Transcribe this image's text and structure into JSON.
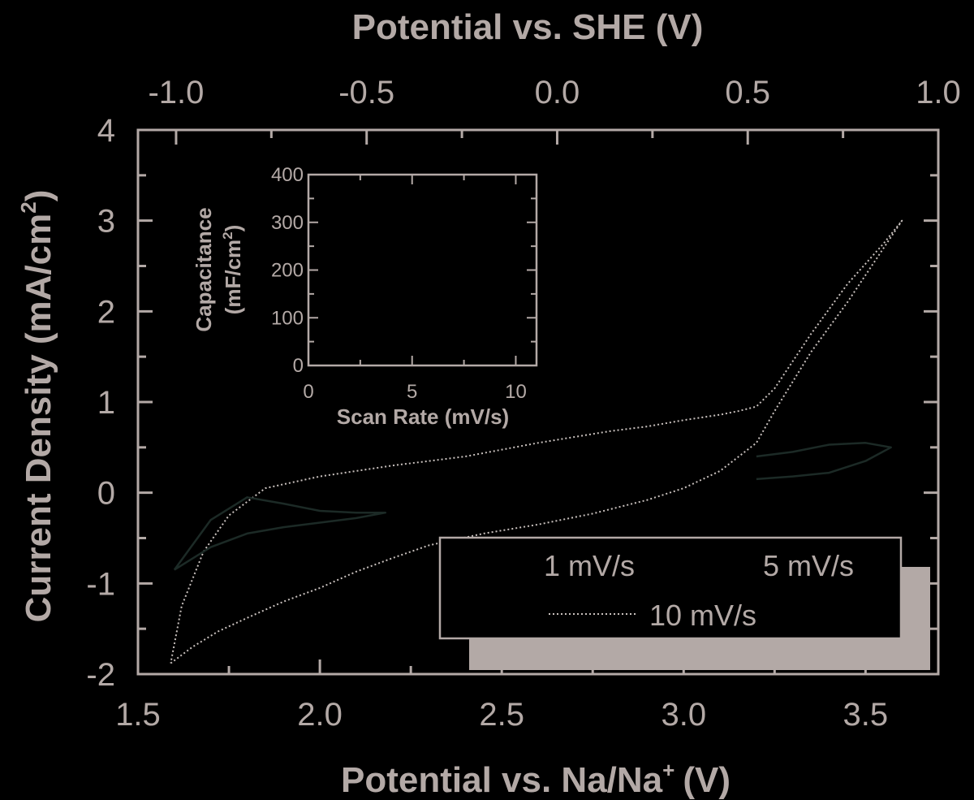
{
  "colors": {
    "background": "#000000",
    "foreground": "#b3a9a6",
    "curve_10mV": "#c8c0bd",
    "curve_dark": "#1c2a26",
    "legend_shadow": "#b3a9a6"
  },
  "chart_data": [
    {
      "type": "line",
      "title": "",
      "xlabel": "Potential vs. Na/Na",
      "xlabel_sup": "+",
      "xlabel_unit": "(V)",
      "x2label": "Potential vs. SHE (V)",
      "ylabel": "Current Density (mA/cm",
      "ylabel_sup": "2",
      "ylabel_end": ")",
      "xlim": [
        1.5,
        3.7
      ],
      "ylim": [
        -2,
        4
      ],
      "x2lim": [
        -1.1,
        1.0
      ],
      "x_ticks": [
        "1.5",
        "2.0",
        "2.5",
        "3.0",
        "3.5"
      ],
      "x2_ticks": [
        "-1.0",
        "-0.5",
        "0.0",
        "0.5",
        "1.0"
      ],
      "y_ticks": [
        "-2",
        "-1",
        "0",
        "1",
        "2",
        "3",
        "4"
      ],
      "legend": {
        "position": "bottom-right",
        "entries": [
          "1 mV/s",
          "5 mV/s",
          "10 mV/s"
        ]
      },
      "series": [
        {
          "name": "10 mV/s",
          "style": "dotted",
          "x": [
            1.59,
            1.65,
            1.72,
            1.8,
            1.9,
            2.0,
            2.1,
            2.2,
            2.3,
            2.45,
            2.6,
            2.75,
            2.9,
            3.0,
            3.1,
            3.2,
            3.25,
            3.35,
            3.45,
            3.55,
            3.6,
            3.55,
            3.45,
            3.35,
            3.25,
            3.2,
            3.15,
            3.1,
            3.0,
            2.9,
            2.8,
            2.6,
            2.4,
            2.2,
            2.0,
            1.85,
            1.75,
            1.68,
            1.62,
            1.59
          ],
          "y": [
            -1.88,
            -1.7,
            -1.53,
            -1.38,
            -1.2,
            -1.05,
            -0.87,
            -0.72,
            -0.58,
            -0.45,
            -0.35,
            -0.23,
            -0.08,
            0.05,
            0.24,
            0.55,
            0.9,
            1.55,
            2.1,
            2.7,
            3.0,
            2.75,
            2.3,
            1.75,
            1.15,
            0.95,
            0.9,
            0.86,
            0.8,
            0.73,
            0.68,
            0.55,
            0.4,
            0.3,
            0.18,
            0.05,
            -0.25,
            -0.65,
            -1.25,
            -1.88
          ]
        },
        {
          "name": "1 mV/s",
          "style": "solid",
          "x": [
            1.6,
            1.7,
            1.8,
            1.9,
            2.0,
            2.1,
            2.18,
            2.1,
            2.0,
            1.9,
            1.8,
            1.7,
            1.6
          ],
          "y": [
            -0.85,
            -0.6,
            -0.45,
            -0.38,
            -0.33,
            -0.28,
            -0.22,
            -0.22,
            -0.2,
            -0.12,
            -0.05,
            -0.3,
            -0.85
          ]
        },
        {
          "name": "5 mV/s",
          "style": "solid",
          "x": [
            3.2,
            3.3,
            3.4,
            3.5,
            3.57,
            3.5,
            3.4,
            3.3,
            3.2
          ],
          "y": [
            0.15,
            0.18,
            0.22,
            0.35,
            0.5,
            0.55,
            0.53,
            0.45,
            0.4
          ]
        }
      ]
    },
    {
      "type": "scatter",
      "title": "",
      "xlabel": "Scan Rate (mV/s)",
      "ylabel_line1": "Capacitance",
      "ylabel_line2": "(mF/cm",
      "ylabel_sup": "2",
      "ylabel_end": ")",
      "xlim": [
        0,
        11
      ],
      "ylim": [
        0,
        400
      ],
      "x_ticks": [
        "0",
        "5",
        "10"
      ],
      "y_ticks": [
        "0",
        "100",
        "200",
        "300",
        "400"
      ],
      "series": []
    }
  ]
}
